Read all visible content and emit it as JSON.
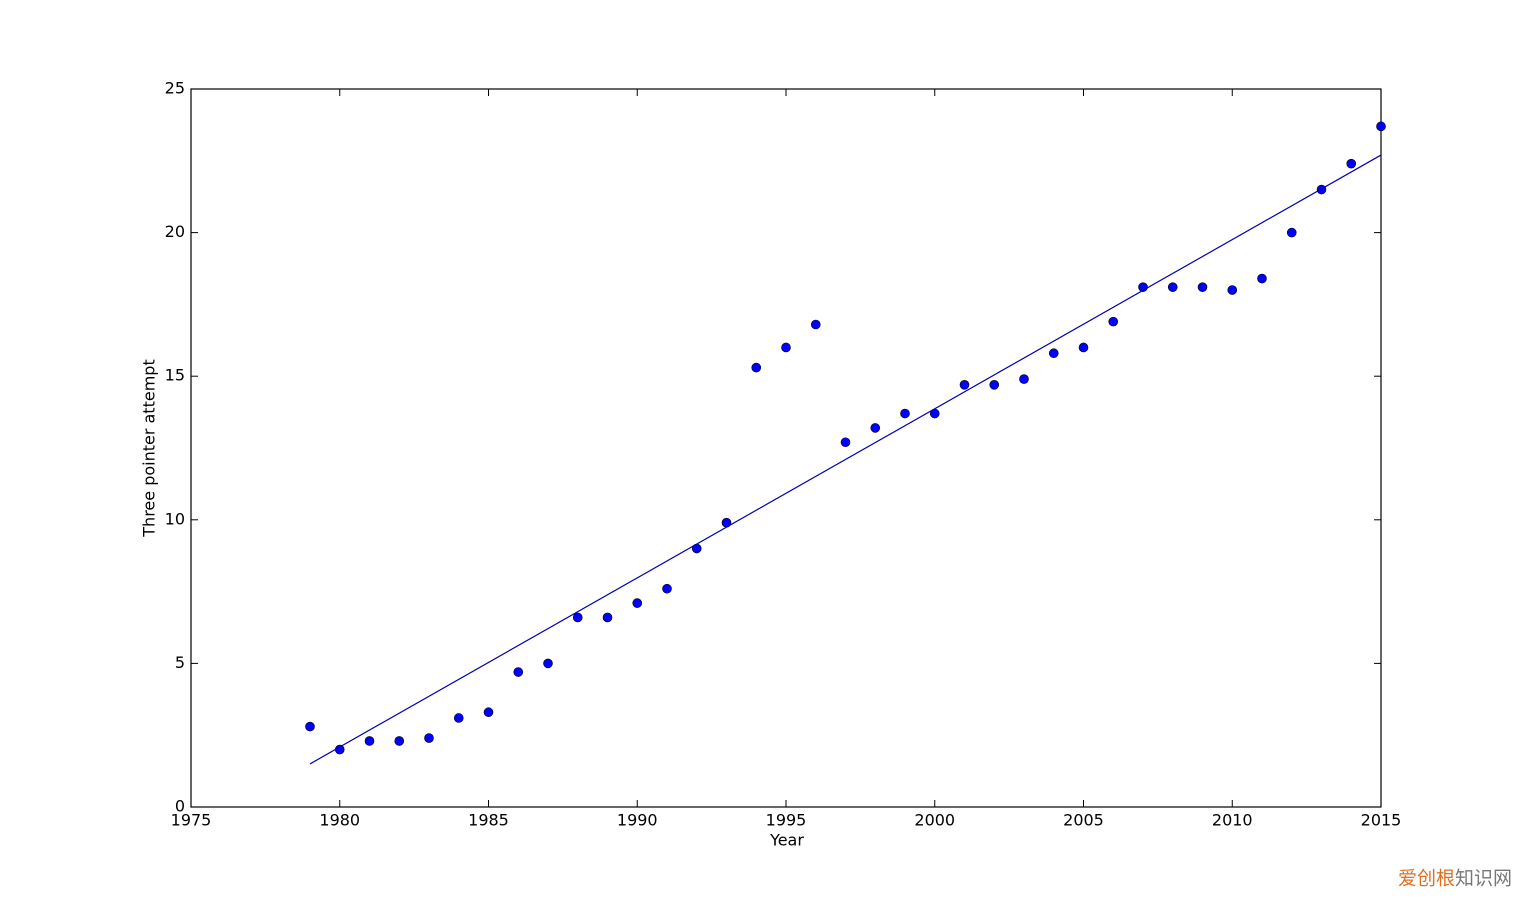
{
  "chart_data": {
    "type": "scatter",
    "x_label": "Year",
    "y_label": "Three pointer attempt",
    "xlim": [
      1975,
      2015
    ],
    "ylim": [
      0,
      25
    ],
    "xticks": [
      1975,
      1980,
      1985,
      1990,
      1995,
      2000,
      2005,
      2010,
      2015
    ],
    "yticks": [
      0,
      5,
      10,
      15,
      20,
      25
    ],
    "series": [
      {
        "type": "scatter",
        "color": "#0000ff",
        "x": [
          1979,
          1980,
          1981,
          1982,
          1983,
          1984,
          1985,
          1986,
          1987,
          1988,
          1989,
          1990,
          1991,
          1992,
          1993,
          1994,
          1995,
          1996,
          1997,
          1998,
          1999,
          2000,
          2001,
          2002,
          2003,
          2004,
          2005,
          2006,
          2007,
          2008,
          2009,
          2010,
          2011,
          2012,
          2013,
          2014,
          2015
        ],
        "values": [
          2.8,
          2.0,
          2.3,
          2.3,
          2.4,
          3.1,
          3.3,
          4.7,
          5.0,
          6.6,
          6.6,
          7.1,
          7.6,
          9.0,
          9.9,
          15.3,
          16.0,
          16.8,
          12.7,
          13.2,
          13.7,
          13.7,
          14.7,
          14.7,
          14.9,
          15.8,
          16.0,
          16.9,
          18.1,
          18.1,
          18.1,
          18.0,
          18.4,
          20.0,
          21.5,
          22.4,
          23.7
        ]
      },
      {
        "type": "line",
        "color": "#0000b0",
        "x": [
          1979,
          2015
        ],
        "values": [
          1.5,
          22.7
        ]
      }
    ]
  },
  "watermark": {
    "brand": "爱创根",
    "site": "知识网"
  }
}
